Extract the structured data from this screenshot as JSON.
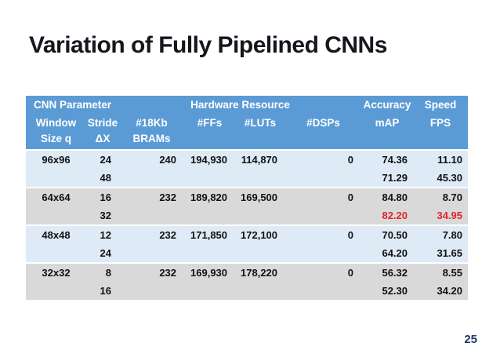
{
  "slide": {
    "title": "Variation of Fully Pipelined CNNs",
    "page_number": "25"
  },
  "colors": {
    "header_bg": "#5B9BD5",
    "band_blue": "#DEEAF6",
    "band_gray": "#D9D9D9",
    "highlight_red": "#E02429",
    "page_number_navy": "#1F3864"
  },
  "table": {
    "group_headers": [
      {
        "label": "CNN Parameter",
        "colspan": 2
      },
      {
        "label": "Hardware Resource",
        "colspan": 4
      },
      {
        "label": "Accuracy",
        "colspan": 1
      },
      {
        "label": "Speed",
        "colspan": 1
      }
    ],
    "column_headers": [
      {
        "line1": "Window",
        "line2": "Size q"
      },
      {
        "line1": "Stride",
        "line2": "ΔX"
      },
      {
        "line1": "#18Kb",
        "line2": "BRAMs"
      },
      {
        "line1": "#FFs",
        "line2": ""
      },
      {
        "line1": "#LUTs",
        "line2": ""
      },
      {
        "line1": "#DSPs",
        "line2": ""
      },
      {
        "line1": "mAP",
        "line2": ""
      },
      {
        "line1": "FPS",
        "line2": ""
      }
    ],
    "rows": [
      {
        "band": "blue",
        "group_start": true,
        "red": [],
        "cells": [
          "96x96",
          "24",
          "240",
          "194,930",
          "114,870",
          "0",
          "74.36",
          "11.10"
        ]
      },
      {
        "band": "blue",
        "group_start": false,
        "red": [],
        "cells": [
          "",
          "48",
          "",
          "",
          "",
          "",
          "71.29",
          "45.30"
        ]
      },
      {
        "band": "gray",
        "group_start": true,
        "red": [],
        "cells": [
          "64x64",
          "16",
          "232",
          "189,820",
          "169,500",
          "0",
          "84.80",
          "8.70"
        ]
      },
      {
        "band": "gray",
        "group_start": false,
        "red": [
          6,
          7
        ],
        "cells": [
          "",
          "32",
          "",
          "",
          "",
          "",
          "82.20",
          "34.95"
        ]
      },
      {
        "band": "blue",
        "group_start": true,
        "red": [],
        "cells": [
          "48x48",
          "12",
          "232",
          "171,850",
          "172,100",
          "0",
          "70.50",
          "7.80"
        ]
      },
      {
        "band": "blue",
        "group_start": false,
        "red": [],
        "cells": [
          "",
          "24",
          "",
          "",
          "",
          "",
          "64.20",
          "31.65"
        ]
      },
      {
        "band": "gray",
        "group_start": true,
        "red": [],
        "cells": [
          "32x32",
          "8",
          "232",
          "169,930",
          "178,220",
          "0",
          "56.32",
          "8.55"
        ]
      },
      {
        "band": "gray",
        "group_start": false,
        "red": [],
        "cells": [
          "",
          "16",
          "",
          "",
          "",
          "",
          "52.30",
          "34.20"
        ]
      }
    ]
  }
}
